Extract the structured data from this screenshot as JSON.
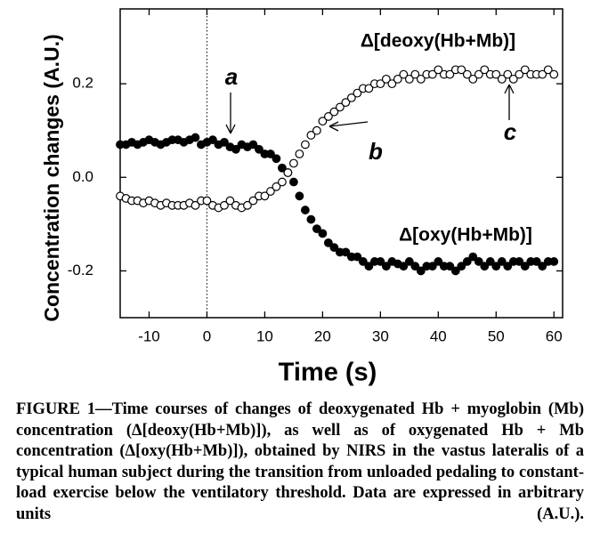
{
  "chart_data": {
    "type": "scatter",
    "xlabel": "Time (s)",
    "ylabel": "Concentration changes (A.U.)",
    "xlim": [
      -15,
      61.5
    ],
    "ylim": [
      -0.3,
      0.36
    ],
    "xticks": [
      -10,
      0,
      10,
      20,
      30,
      40,
      50,
      60
    ],
    "yticks": [
      -0.2,
      {
        "value": 0,
        "label": "0.0"
      },
      0.2
    ],
    "x": [
      -15,
      -14,
      -13,
      -12,
      -11,
      -10,
      -9,
      -8,
      -7,
      -6,
      -5,
      -4,
      -3,
      -2,
      -1,
      0,
      1,
      2,
      3,
      4,
      5,
      6,
      7,
      8,
      9,
      10,
      11,
      12,
      13,
      14,
      15,
      16,
      17,
      18,
      19,
      20,
      21,
      22,
      23,
      24,
      25,
      26,
      27,
      28,
      29,
      30,
      31,
      32,
      33,
      34,
      35,
      36,
      37,
      38,
      39,
      40,
      41,
      42,
      43,
      44,
      45,
      46,
      47,
      48,
      49,
      50,
      51,
      52,
      53,
      54,
      55,
      56,
      57,
      58,
      59,
      60
    ],
    "series": [
      {
        "name": "oxy",
        "color": "#000000",
        "fill": "#000000",
        "values": [
          0.07,
          0.07,
          0.075,
          0.07,
          0.075,
          0.08,
          0.075,
          0.07,
          0.075,
          0.08,
          0.08,
          0.075,
          0.08,
          0.085,
          0.07,
          0.075,
          0.08,
          0.07,
          0.075,
          0.065,
          0.06,
          0.07,
          0.065,
          0.07,
          0.06,
          0.05,
          0.05,
          0.04,
          0.02,
          0.01,
          -0.01,
          -0.04,
          -0.07,
          -0.09,
          -0.11,
          -0.12,
          -0.14,
          -0.15,
          -0.16,
          -0.16,
          -0.17,
          -0.17,
          -0.18,
          -0.19,
          -0.18,
          -0.18,
          -0.19,
          -0.18,
          -0.185,
          -0.19,
          -0.18,
          -0.19,
          -0.2,
          -0.19,
          -0.19,
          -0.18,
          -0.19,
          -0.19,
          -0.2,
          -0.19,
          -0.18,
          -0.17,
          -0.18,
          -0.19,
          -0.18,
          -0.19,
          -0.18,
          -0.19,
          -0.18,
          -0.18,
          -0.19,
          -0.18,
          -0.18,
          -0.19,
          -0.18,
          -0.18
        ]
      },
      {
        "name": "deoxy",
        "color": "#000000",
        "fill": "#ffffff",
        "values": [
          -0.04,
          -0.045,
          -0.05,
          -0.05,
          -0.055,
          -0.05,
          -0.055,
          -0.06,
          -0.055,
          -0.06,
          -0.06,
          -0.06,
          -0.055,
          -0.06,
          -0.05,
          -0.05,
          -0.06,
          -0.065,
          -0.06,
          -0.05,
          -0.06,
          -0.065,
          -0.06,
          -0.05,
          -0.04,
          -0.04,
          -0.03,
          -0.02,
          -0.01,
          0.01,
          0.03,
          0.05,
          0.07,
          0.09,
          0.1,
          0.12,
          0.13,
          0.14,
          0.15,
          0.16,
          0.17,
          0.18,
          0.19,
          0.19,
          0.2,
          0.2,
          0.21,
          0.2,
          0.21,
          0.22,
          0.21,
          0.22,
          0.21,
          0.22,
          0.22,
          0.23,
          0.22,
          0.22,
          0.23,
          0.23,
          0.22,
          0.21,
          0.22,
          0.23,
          0.22,
          0.22,
          0.21,
          0.22,
          0.21,
          0.22,
          0.23,
          0.22,
          0.22,
          0.22,
          0.23,
          0.22
        ]
      }
    ],
    "annotations": [
      {
        "text": "Δ[deoxy(Hb+Mb)]"
      },
      {
        "text": "Δ[oxy(Hb+Mb)]"
      },
      {
        "text": "a"
      },
      {
        "text": "b"
      },
      {
        "text": "c"
      }
    ]
  },
  "caption": "FIGURE 1—Time courses of changes of deoxygenated Hb + myoglobin (Mb) concentration (Δ[deoxy(Hb+Mb)]), as well as of oxygenated Hb + Mb concentration (Δ[oxy(Hb+Mb)]), obtained by NIRS in the vastus lateralis of a typical human subject during the transition from unloaded pedaling to constant-load exercise below the ventilatory threshold. Data are expressed in arbitrary units (A.U.)."
}
